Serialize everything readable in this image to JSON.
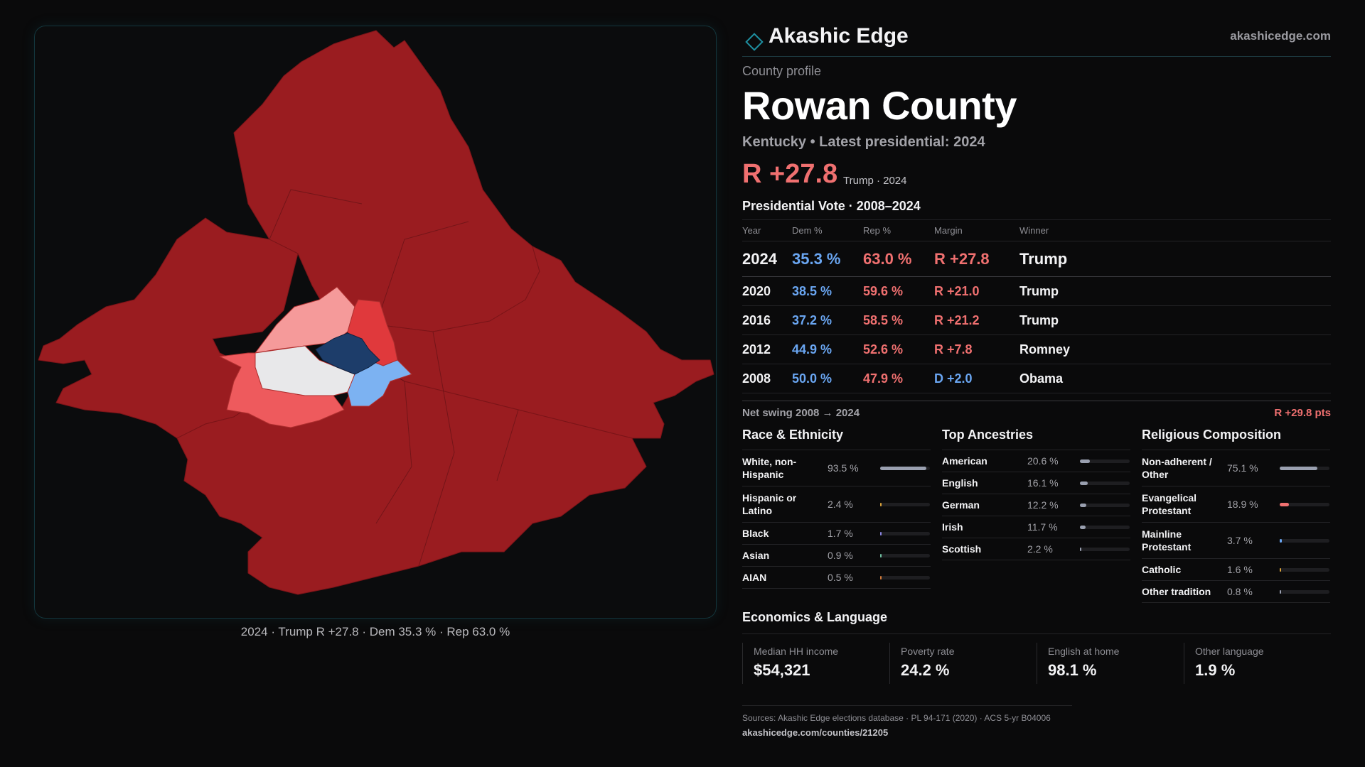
{
  "brand": {
    "name": "Akashic Edge",
    "url": "akashicedge.com"
  },
  "profile": {
    "eyebrow": "County profile",
    "title": "Rowan County",
    "subtitle": "Kentucky • Latest presidential: 2024",
    "headline_margin": "R +27.8",
    "headline_sub": "Trump · 2024"
  },
  "map": {
    "caption": "2024 · Trump R +27.8 · Dem 35.3 % · Rep 63.0 %",
    "colors": {
      "safe_r": "#9a1c20",
      "likely_r": "#e0393c",
      "lean_r": "#ee5a5d",
      "tilt_r": "#f59a9a",
      "tossup": "#e8e8ea",
      "lean_d": "#7cb2f2",
      "safe_d": "#1d3d6a"
    }
  },
  "vote": {
    "title": "Presidential Vote · 2008–2024",
    "headers": {
      "year": "Year",
      "dem": "Dem %",
      "rep": "Rep %",
      "margin": "Margin",
      "winner": "Winner"
    },
    "rows": [
      {
        "year": "2024",
        "dem": "35.3 %",
        "rep": "63.0 %",
        "margin": "R +27.8",
        "winner": "Trump"
      },
      {
        "year": "2020",
        "dem": "38.5 %",
        "rep": "59.6 %",
        "margin": "R +21.0",
        "winner": "Trump"
      },
      {
        "year": "2016",
        "dem": "37.2 %",
        "rep": "58.5 %",
        "margin": "R +21.2",
        "winner": "Trump"
      },
      {
        "year": "2012",
        "dem": "44.9 %",
        "rep": "52.6 %",
        "margin": "R +7.8",
        "winner": "Romney"
      },
      {
        "year": "2008",
        "dem": "50.0 %",
        "rep": "47.9 %",
        "margin": "D +2.0",
        "winner": "Obama"
      }
    ],
    "swing_label": "Net swing 2008 → 2024",
    "swing_value": "R +29.8 pts"
  },
  "race": {
    "title": "Race & Ethnicity",
    "items": [
      {
        "label": "White, non-Hispanic",
        "value": "93.5 %",
        "pct": 93.5,
        "color": "#9aa0b0"
      },
      {
        "label": "Hispanic or Latino",
        "value": "2.4 %",
        "pct": 2.4,
        "color": "#d9a23a"
      },
      {
        "label": "Black",
        "value": "1.7 %",
        "pct": 1.7,
        "color": "#8a84e0"
      },
      {
        "label": "Asian",
        "value": "0.9 %",
        "pct": 0.9,
        "color": "#6fbfa0"
      },
      {
        "label": "AIAN",
        "value": "0.5 %",
        "pct": 0.5,
        "color": "#d07a3a"
      }
    ]
  },
  "ancestry": {
    "title": "Top Ancestries",
    "items": [
      {
        "label": "American",
        "value": "20.6 %",
        "pct": 20.6,
        "color": "#9aa0b0"
      },
      {
        "label": "English",
        "value": "16.1 %",
        "pct": 16.1,
        "color": "#9aa0b0"
      },
      {
        "label": "German",
        "value": "12.2 %",
        "pct": 12.2,
        "color": "#9aa0b0"
      },
      {
        "label": "Irish",
        "value": "11.7 %",
        "pct": 11.7,
        "color": "#9aa0b0"
      },
      {
        "label": "Scottish",
        "value": "2.2 %",
        "pct": 2.2,
        "color": "#9aa0b0"
      }
    ]
  },
  "religion": {
    "title": "Religious Composition",
    "items": [
      {
        "label": "Non-adherent / Other",
        "value": "75.1 %",
        "pct": 75.1,
        "color": "#9aa0b0"
      },
      {
        "label": "Evangelical Protestant",
        "value": "18.9 %",
        "pct": 18.9,
        "color": "#f07070"
      },
      {
        "label": "Mainline Protestant",
        "value": "3.7 %",
        "pct": 3.7,
        "color": "#6aa6f2"
      },
      {
        "label": "Catholic",
        "value": "1.6 %",
        "pct": 1.6,
        "color": "#d9a23a"
      },
      {
        "label": "Other tradition",
        "value": "0.8 %",
        "pct": 0.8,
        "color": "#9aa0b0"
      }
    ]
  },
  "economics": {
    "title": "Economics & Language",
    "cells": [
      {
        "label": "Median HH income",
        "value": "$54,321"
      },
      {
        "label": "Poverty rate",
        "value": "24.2 %"
      },
      {
        "label": "English at home",
        "value": "98.1 %"
      },
      {
        "label": "Other language",
        "value": "1.9 %"
      }
    ]
  },
  "sources": {
    "line": "Sources: Akashic Edge elections database · PL 94-171 (2020) · ACS 5-yr B04006",
    "url": "akashicedge.com/counties/21205"
  }
}
